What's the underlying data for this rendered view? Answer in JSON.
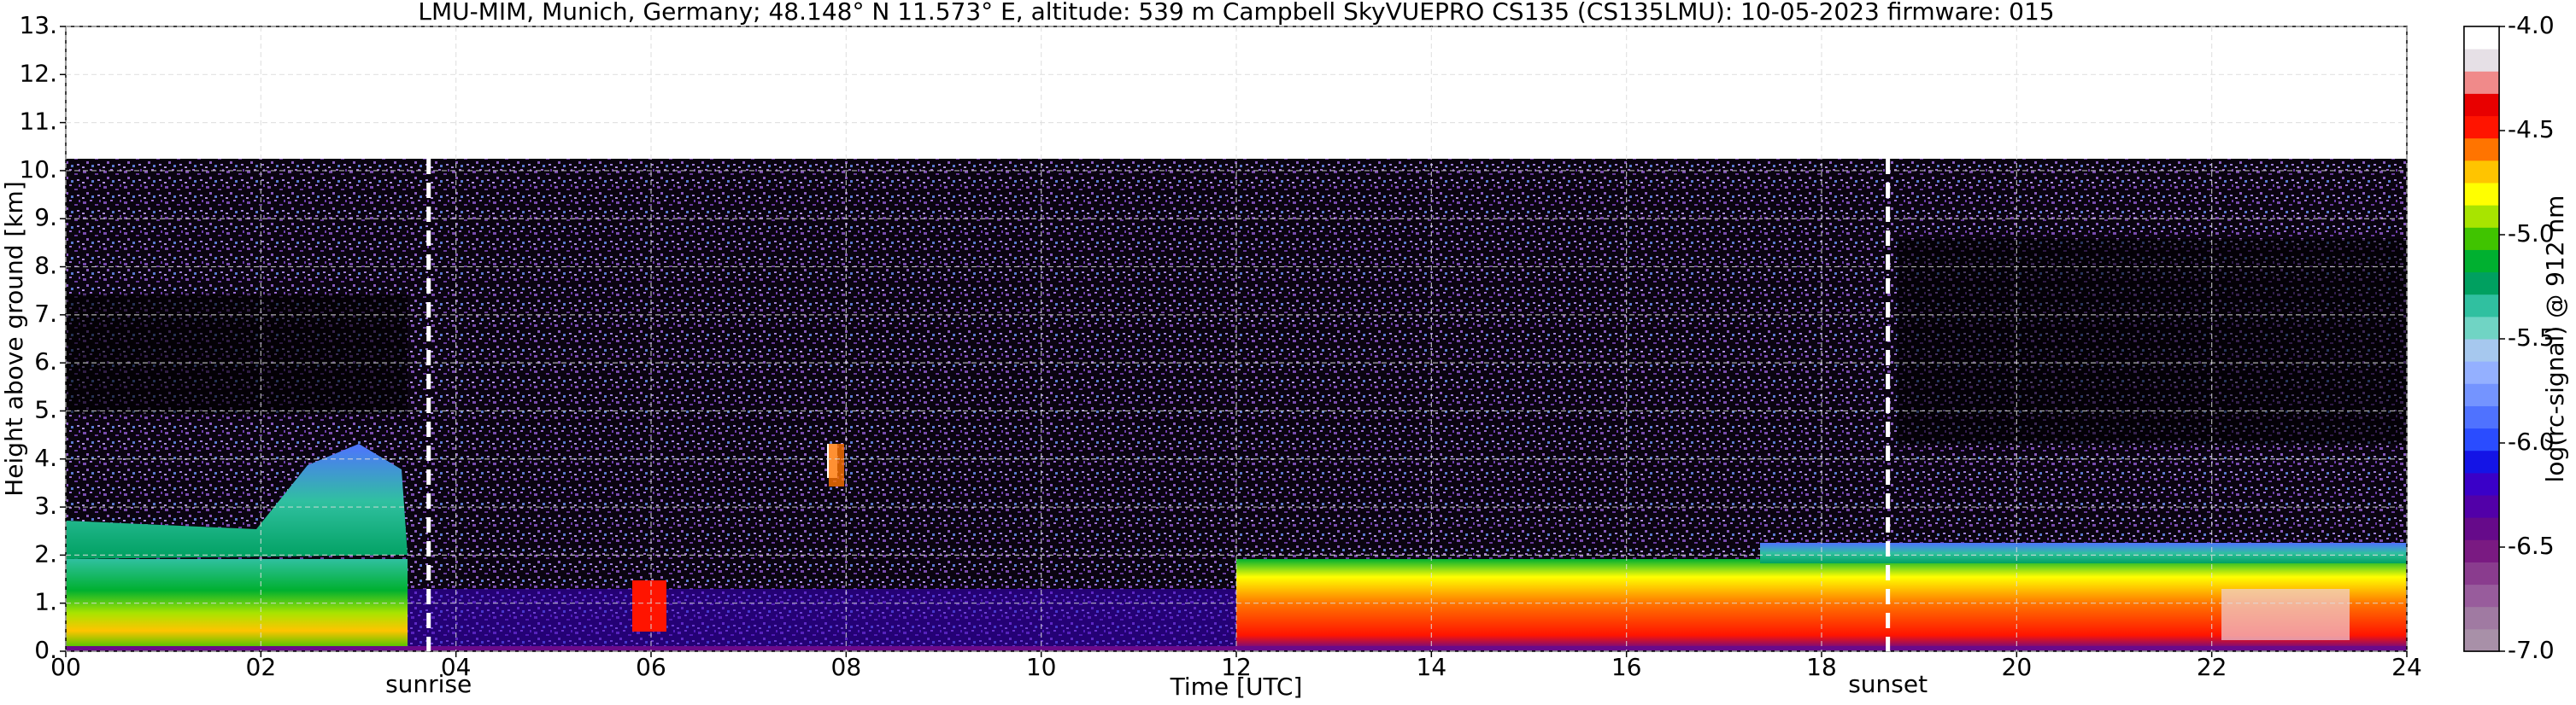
{
  "chart_data": {
    "type": "heatmap",
    "title": "LMU-MIM, Munich, Germany; 48.148° N 11.573° E, altitude: 539 m    Campbell SkyVUEPRO CS135 (CS135LMU): 10-05-2023    firmware: 015",
    "x_label": "Time [UTC]",
    "y_label": "Height above ground [km]",
    "colorbar_label": "log(rc-signal) @ 912 nm",
    "xlim": [
      0,
      24
    ],
    "xticks": [
      {
        "value": 0,
        "label": "00"
      },
      {
        "value": 2,
        "label": "02"
      },
      {
        "value": 4,
        "label": "04"
      },
      {
        "value": 6,
        "label": "06"
      },
      {
        "value": 8,
        "label": "08"
      },
      10,
      12,
      14,
      16,
      18,
      20,
      22,
      24
    ],
    "ylim": [
      0,
      13
    ],
    "yticks": [
      {
        "value": 0,
        "label": "0."
      },
      {
        "value": 1,
        "label": "1."
      },
      {
        "value": 2,
        "label": "2."
      },
      {
        "value": 3,
        "label": "3."
      },
      {
        "value": 4,
        "label": "4."
      },
      {
        "value": 5,
        "label": "5."
      },
      {
        "value": 6,
        "label": "6."
      },
      {
        "value": 7,
        "label": "7."
      },
      {
        "value": 8,
        "label": "8."
      },
      {
        "value": 9,
        "label": "9."
      },
      {
        "value": 10,
        "label": "10."
      },
      {
        "value": 11,
        "label": "11."
      },
      {
        "value": 12,
        "label": "12."
      },
      {
        "value": 13,
        "label": "13."
      }
    ],
    "clim": [
      -7,
      -4
    ],
    "cticks": [
      {
        "value": -7,
        "label": "-7.0"
      },
      -6.5,
      {
        "value": -6,
        "label": "-6.0"
      },
      -5.5,
      {
        "value": -5,
        "label": "-5.0"
      },
      -4.5,
      {
        "value": -4,
        "label": "-4.0"
      }
    ],
    "colormap": [
      "#a890a8",
      "#a07aa2",
      "#985c9c",
      "#8a3c8e",
      "#7a1a82",
      "#660a8a",
      "#5200a8",
      "#3a00c8",
      "#1414e6",
      "#2a4cff",
      "#4f72ff",
      "#7494ff",
      "#94b0ff",
      "#a6c8ee",
      "#70d4c4",
      "#30c0a0",
      "#00a060",
      "#00b030",
      "#40c400",
      "#a8e400",
      "#ffff00",
      "#ffc400",
      "#ff7400",
      "#ff1400",
      "#e80000",
      "#f08a8a",
      "#e6e0e6",
      "#ffffff"
    ],
    "grid": true,
    "annotations": [
      {
        "text": "sunrise",
        "x": 3.72
      },
      {
        "text": "sunset",
        "x": 18.68
      }
    ]
  }
}
